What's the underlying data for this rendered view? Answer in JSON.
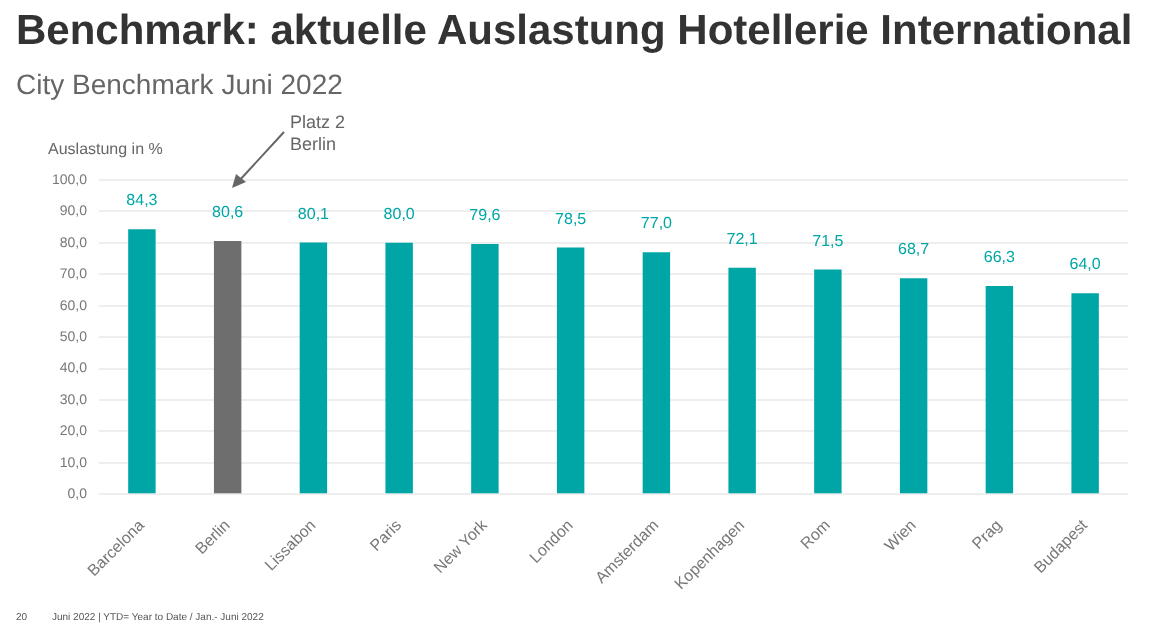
{
  "chart_data": {
    "type": "bar",
    "title": "Benchmark: aktuelle Auslastung Hotellerie International",
    "subtitle": "City Benchmark Juni 2022",
    "ylabel": "Auslastung in %",
    "categories": [
      "Barcelona",
      "Berlin",
      "Lissabon",
      "Paris",
      "New York",
      "London",
      "Amsterdam",
      "Kopenhagen",
      "Rom",
      "Wien",
      "Prag",
      "Budapest"
    ],
    "values": [
      84.3,
      80.6,
      80.1,
      80.0,
      79.6,
      78.5,
      77.0,
      72.1,
      71.5,
      68.7,
      66.3,
      64.0
    ],
    "colors": [
      "#00a6a6",
      "#6e6e6e",
      "#00a6a6",
      "#00a6a6",
      "#00a6a6",
      "#00a6a6",
      "#00a6a6",
      "#00a6a6",
      "#00a6a6",
      "#00a6a6",
      "#00a6a6",
      "#00a6a6"
    ],
    "value_labels": [
      "84,3",
      "80,6",
      "80,1",
      "80,0",
      "79,6",
      "78,5",
      "77,0",
      "72,1",
      "71,5",
      "68,7",
      "66,3",
      "64,0"
    ],
    "ylim": [
      0,
      100
    ],
    "yticks": [
      {
        "value": 0,
        "label": "0,0"
      },
      {
        "value": 10,
        "label": "10,0"
      },
      {
        "value": 20,
        "label": "20,0"
      },
      {
        "value": 30,
        "label": "30,0"
      },
      {
        "value": 40,
        "label": "40,0"
      },
      {
        "value": 50,
        "label": "50,0"
      },
      {
        "value": 60,
        "label": "60,0"
      },
      {
        "value": 70,
        "label": "70,0"
      },
      {
        "value": 80,
        "label": "80,0"
      },
      {
        "value": 90,
        "label": "90,0"
      },
      {
        "value": 100,
        "label": "100,0"
      }
    ],
    "grid": "y",
    "legend": false,
    "annotations": [
      "Platz 2\nBerlin",
      "20",
      "Juni 2022 | YTD= Year to Date / Jan.- Juni 2022"
    ]
  }
}
